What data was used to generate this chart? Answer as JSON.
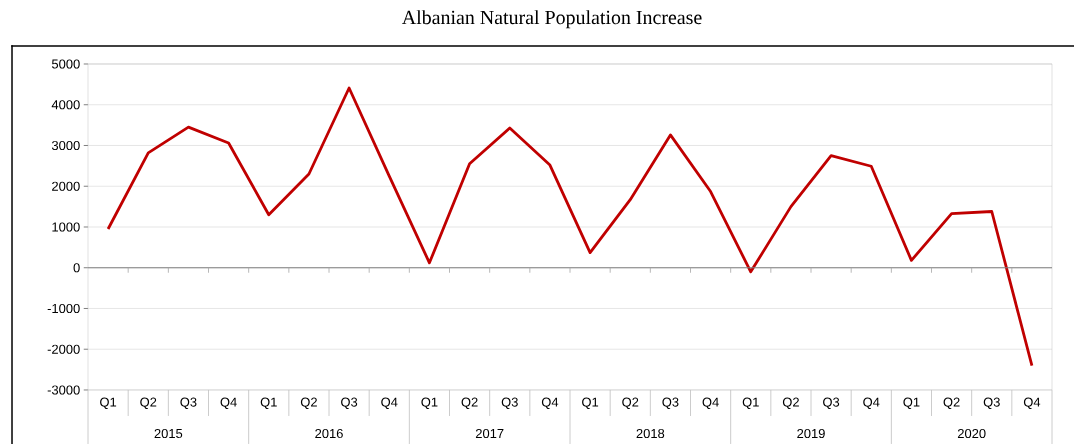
{
  "chart_data": {
    "type": "line",
    "title": "Albanian Natural Population Increase",
    "categories": [
      "Q1",
      "Q2",
      "Q3",
      "Q4",
      "Q1",
      "Q2",
      "Q3",
      "Q4",
      "Q1",
      "Q2",
      "Q3",
      "Q4",
      "Q1",
      "Q2",
      "Q3",
      "Q4",
      "Q1",
      "Q2",
      "Q3",
      "Q4",
      "Q1",
      "Q2",
      "Q3",
      "Q4"
    ],
    "series": [
      {
        "color": "#c00000",
        "values": [
          950,
          2820,
          3450,
          3060,
          1300,
          2300,
          4410,
          2250,
          120,
          2550,
          3430,
          2520,
          370,
          1670,
          3260,
          1870,
          -100,
          1500,
          2750,
          2490,
          180,
          1330,
          1380,
          -2400
        ]
      }
    ],
    "annotations": [
      "2015",
      "2016",
      "2017",
      "2018",
      "2019",
      "2020"
    ],
    "ylim": [
      -3000,
      5000
    ],
    "yticks": [
      -3000,
      -2000,
      -1000,
      0,
      1000,
      2000,
      3000,
      4000,
      5000
    ],
    "grid": "y",
    "marker": "none",
    "line_style": "solid"
  }
}
